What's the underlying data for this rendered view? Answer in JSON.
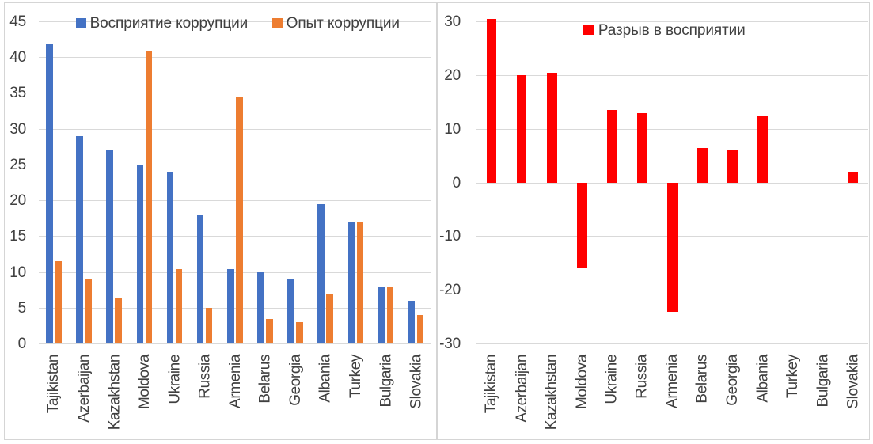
{
  "page": {
    "background_color": "#ffffff",
    "panel_border_color": "#d5d5d5",
    "gridline_color": "#d9d9d9",
    "text_color": "#404040"
  },
  "chart_data": [
    {
      "type": "bar",
      "title": "",
      "xlabel": "",
      "ylabel": "",
      "grid": true,
      "legend_position": "top",
      "ylim": [
        0,
        45
      ],
      "ytick_step": 5,
      "categories": [
        "Tajikistan",
        "Azerbaijan",
        "Kazakhstan",
        "Moldova",
        "Ukraine",
        "Russia",
        "Armenia",
        "Belarus",
        "Georgia",
        "Albania",
        "Turkey",
        "Bulgaria",
        "Slovakia"
      ],
      "series": [
        {
          "name": "Восприятие коррупции",
          "color": "#4472c4",
          "values": [
            42,
            29,
            27,
            25,
            24,
            18,
            10.5,
            10,
            9,
            19.5,
            17,
            8,
            6
          ]
        },
        {
          "name": "Опыт коррупции",
          "color": "#ed7d31",
          "values": [
            11.5,
            9,
            6.5,
            41,
            10.5,
            5,
            34.5,
            3.5,
            3,
            7,
            17,
            8,
            4
          ]
        }
      ]
    },
    {
      "type": "bar",
      "title": "",
      "xlabel": "",
      "ylabel": "",
      "grid": true,
      "legend_position": "top",
      "ylim": [
        -30,
        30
      ],
      "ytick_step": 10,
      "categories": [
        "Tajikistan",
        "Azerbaijan",
        "Kazakhstan",
        "Moldova",
        "Ukraine",
        "Russia",
        "Armenia",
        "Belarus",
        "Georgia",
        "Albania",
        "Turkey",
        "Bulgaria",
        "Slovakia"
      ],
      "series": [
        {
          "name": "Разрыв в восприятии",
          "color": "#ff0000",
          "values": [
            30.5,
            20,
            20.5,
            -16,
            13.5,
            13,
            -24,
            6.5,
            6,
            12.5,
            0,
            0,
            2
          ]
        }
      ]
    }
  ]
}
